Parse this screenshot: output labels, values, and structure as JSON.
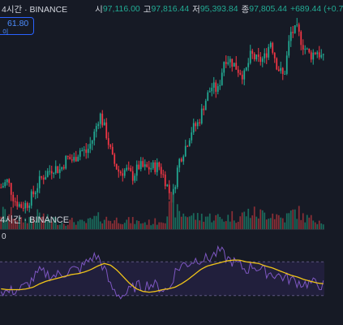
{
  "header": {
    "symbol_tail": "4시간 · BINANCE",
    "open_label": "시",
    "open_value": "97,116.00",
    "high_label": "고",
    "high_value": "97,816.44",
    "low_label": "저",
    "low_value": "95,393.84",
    "close_label": "종",
    "close_value": "97,805.44",
    "change": "+689.44 (+0.7"
  },
  "price_tag": {
    "value": "61.80",
    "unit": "이"
  },
  "volume_legend": {
    "text": "4시간 · BINANCE"
  },
  "rsi_legend": {
    "text": "0"
  },
  "colors": {
    "background": "#161a25",
    "up": "#22ab94",
    "down": "#f23645",
    "volume_up": "#1a6b5c",
    "volume_down": "#8a2f36",
    "rsi": "#7e57c2",
    "rsi_ma": "#f0c419",
    "band": "#2b2450"
  },
  "chart_data": [
    {
      "type": "candlestick",
      "title": "",
      "price_trend": [
        97.0,
        97.5,
        96.1,
        95.6,
        95.8,
        96.6,
        97.6,
        98.1,
        98.5,
        98.3,
        99.2,
        99.0,
        99.8,
        99.6,
        100.7,
        102.5,
        101.0,
        99.0,
        98.1,
        98.3,
        97.8,
        98.6,
        98.4,
        98.5,
        98.6,
        97.5,
        96.0,
        98.9,
        100.0,
        101.3,
        101.8,
        103.4,
        104.5,
        104.2,
        106.7,
        106.4,
        105.8,
        105.3,
        106.9,
        106.4,
        106.6,
        107.9,
        106.0,
        105.2,
        108.5,
        108.7,
        107.5,
        106.8,
        107.2,
        106.5
      ],
      "volume_trend": [
        1.0,
        0.9,
        0.9,
        0.5,
        0.6,
        0.7,
        0.9,
        0.6,
        0.6,
        0.4,
        0.4,
        0.5,
        0.4,
        0.4,
        0.6,
        0.7,
        0.6,
        0.5,
        0.6,
        0.5,
        0.5,
        0.4,
        0.4,
        0.4,
        0.5,
        0.7,
        1.6,
        0.9,
        0.9,
        0.8,
        0.7,
        0.8,
        0.7,
        0.7,
        0.6,
        0.8,
        0.7,
        0.9,
        1.0,
        0.9,
        0.9,
        1.0,
        0.8,
        0.6,
        0.9,
        1.1,
        0.7,
        0.6,
        0.6,
        0.5
      ]
    },
    {
      "type": "line",
      "title": "",
      "series": [
        {
          "values": [
            36,
            34,
            36,
            38,
            42,
            50,
            58,
            56,
            53,
            55,
            57,
            61,
            60,
            67,
            75,
            76,
            62,
            41,
            32,
            30,
            36,
            42,
            40,
            44,
            42,
            38,
            36,
            58,
            66,
            68,
            72,
            74,
            73,
            78,
            83,
            74,
            70,
            66,
            60,
            66,
            62,
            58,
            56,
            54,
            51,
            49,
            46,
            44,
            45,
            44,
            42
          ]
        },
        {
          "values": [
            38,
            37,
            37,
            37,
            38,
            40,
            44,
            47,
            49,
            51,
            53,
            55,
            56,
            58,
            61,
            65,
            68,
            66,
            60,
            52,
            44,
            38,
            35,
            34,
            35,
            37,
            38,
            40,
            44,
            49,
            55,
            61,
            65,
            67,
            69,
            71,
            72,
            72,
            70,
            69,
            68,
            65,
            63,
            60,
            57,
            54,
            52,
            49,
            47,
            45,
            44
          ]
        }
      ],
      "bands": [
        70,
        30
      ]
    }
  ]
}
